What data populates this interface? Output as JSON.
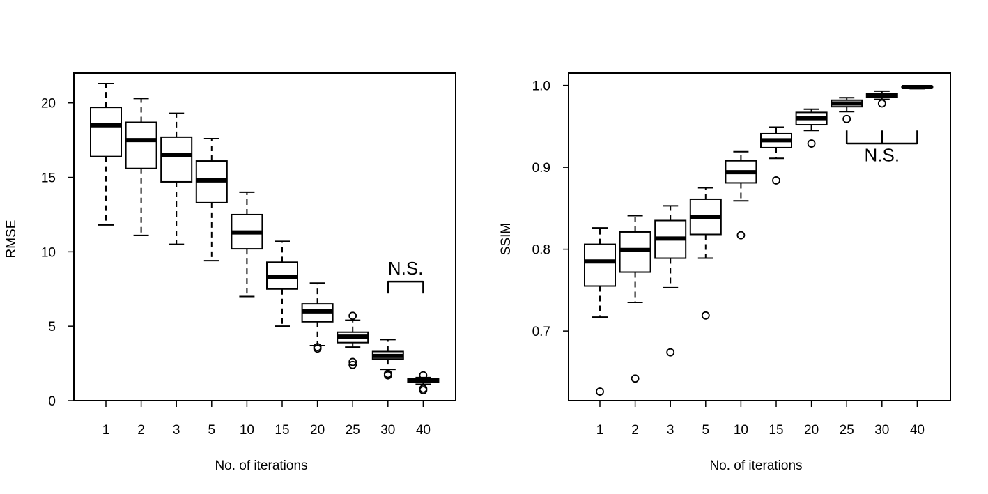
{
  "chart_data": [
    {
      "type": "box",
      "xlabel": "No. of iterations",
      "ylabel": "RMSE",
      "categories": [
        "1",
        "2",
        "3",
        "5",
        "10",
        "15",
        "20",
        "25",
        "30",
        "40"
      ],
      "ylim": [
        0,
        22
      ],
      "yticks": [
        0,
        5,
        10,
        15,
        20
      ],
      "grid": false,
      "boxes": [
        {
          "whisker_low": 11.8,
          "q1": 16.4,
          "median": 18.5,
          "q3": 19.7,
          "whisker_high": 21.3,
          "outliers": []
        },
        {
          "whisker_low": 11.1,
          "q1": 15.6,
          "median": 17.5,
          "q3": 18.7,
          "whisker_high": 20.3,
          "outliers": []
        },
        {
          "whisker_low": 10.5,
          "q1": 14.7,
          "median": 16.5,
          "q3": 17.7,
          "whisker_high": 19.3,
          "outliers": []
        },
        {
          "whisker_low": 9.4,
          "q1": 13.3,
          "median": 14.8,
          "q3": 16.1,
          "whisker_high": 17.6,
          "outliers": []
        },
        {
          "whisker_low": 7.0,
          "q1": 10.2,
          "median": 11.3,
          "q3": 12.5,
          "whisker_high": 14.0,
          "outliers": []
        },
        {
          "whisker_low": 5.0,
          "q1": 7.5,
          "median": 8.3,
          "q3": 9.3,
          "whisker_high": 10.7,
          "outliers": []
        },
        {
          "whisker_low": 3.7,
          "q1": 5.3,
          "median": 6.0,
          "q3": 6.5,
          "whisker_high": 7.9,
          "outliers": [
            3.5,
            3.6
          ]
        },
        {
          "whisker_low": 3.6,
          "q1": 3.9,
          "median": 4.3,
          "q3": 4.6,
          "whisker_high": 5.4,
          "outliers": [
            5.7,
            2.6,
            2.4
          ]
        },
        {
          "whisker_low": 2.1,
          "q1": 2.8,
          "median": 3.0,
          "q3": 3.3,
          "whisker_high": 4.1,
          "outliers": [
            1.8,
            1.7
          ]
        },
        {
          "whisker_low": 1.1,
          "q1": 1.25,
          "median": 1.35,
          "q3": 1.45,
          "whisker_high": 1.55,
          "outliers": [
            1.7,
            0.8,
            0.7
          ]
        }
      ],
      "annotations": [
        {
          "text": "N.S.",
          "from_category": "30",
          "to_category": "40",
          "bracket_y": 8.0,
          "bracket_drop": 0.8,
          "label_y": 8.9
        }
      ]
    },
    {
      "type": "box",
      "xlabel": "No. of iterations",
      "ylabel": "SSIM",
      "categories": [
        "1",
        "2",
        "3",
        "5",
        "10",
        "15",
        "20",
        "25",
        "30",
        "40"
      ],
      "ylim": [
        0.615,
        1.015
      ],
      "yticks": [
        0.7,
        0.8,
        0.9,
        1.0
      ],
      "ytick_labels": [
        "0.7",
        "0.8",
        "0.9",
        "1.0"
      ],
      "grid": false,
      "boxes": [
        {
          "whisker_low": 0.717,
          "q1": 0.755,
          "median": 0.785,
          "q3": 0.806,
          "whisker_high": 0.826,
          "outliers": [
            0.626
          ]
        },
        {
          "whisker_low": 0.735,
          "q1": 0.772,
          "median": 0.799,
          "q3": 0.821,
          "whisker_high": 0.841,
          "outliers": [
            0.642
          ]
        },
        {
          "whisker_low": 0.753,
          "q1": 0.789,
          "median": 0.813,
          "q3": 0.835,
          "whisker_high": 0.853,
          "outliers": [
            0.674
          ]
        },
        {
          "whisker_low": 0.789,
          "q1": 0.818,
          "median": 0.839,
          "q3": 0.861,
          "whisker_high": 0.875,
          "outliers": [
            0.719
          ]
        },
        {
          "whisker_low": 0.859,
          "q1": 0.881,
          "median": 0.894,
          "q3": 0.908,
          "whisker_high": 0.919,
          "outliers": [
            0.817
          ]
        },
        {
          "whisker_low": 0.911,
          "q1": 0.924,
          "median": 0.933,
          "q3": 0.941,
          "whisker_high": 0.949,
          "outliers": [
            0.884
          ]
        },
        {
          "whisker_low": 0.945,
          "q1": 0.952,
          "median": 0.96,
          "q3": 0.967,
          "whisker_high": 0.971,
          "outliers": [
            0.929
          ]
        },
        {
          "whisker_low": 0.968,
          "q1": 0.974,
          "median": 0.978,
          "q3": 0.982,
          "whisker_high": 0.985,
          "outliers": [
            0.959
          ]
        },
        {
          "whisker_low": 0.983,
          "q1": 0.986,
          "median": 0.988,
          "q3": 0.99,
          "whisker_high": 0.993,
          "outliers": [
            0.978
          ]
        },
        {
          "whisker_low": 0.996,
          "q1": 0.997,
          "median": 0.998,
          "q3": 0.9985,
          "whisker_high": 0.999,
          "outliers": []
        }
      ],
      "annotations": [
        {
          "text": "N.S.",
          "from_category": "25",
          "to_category": "40",
          "bracket_y": 0.929,
          "bracket_rise": 0.016,
          "label_y": 0.915
        }
      ]
    }
  ]
}
